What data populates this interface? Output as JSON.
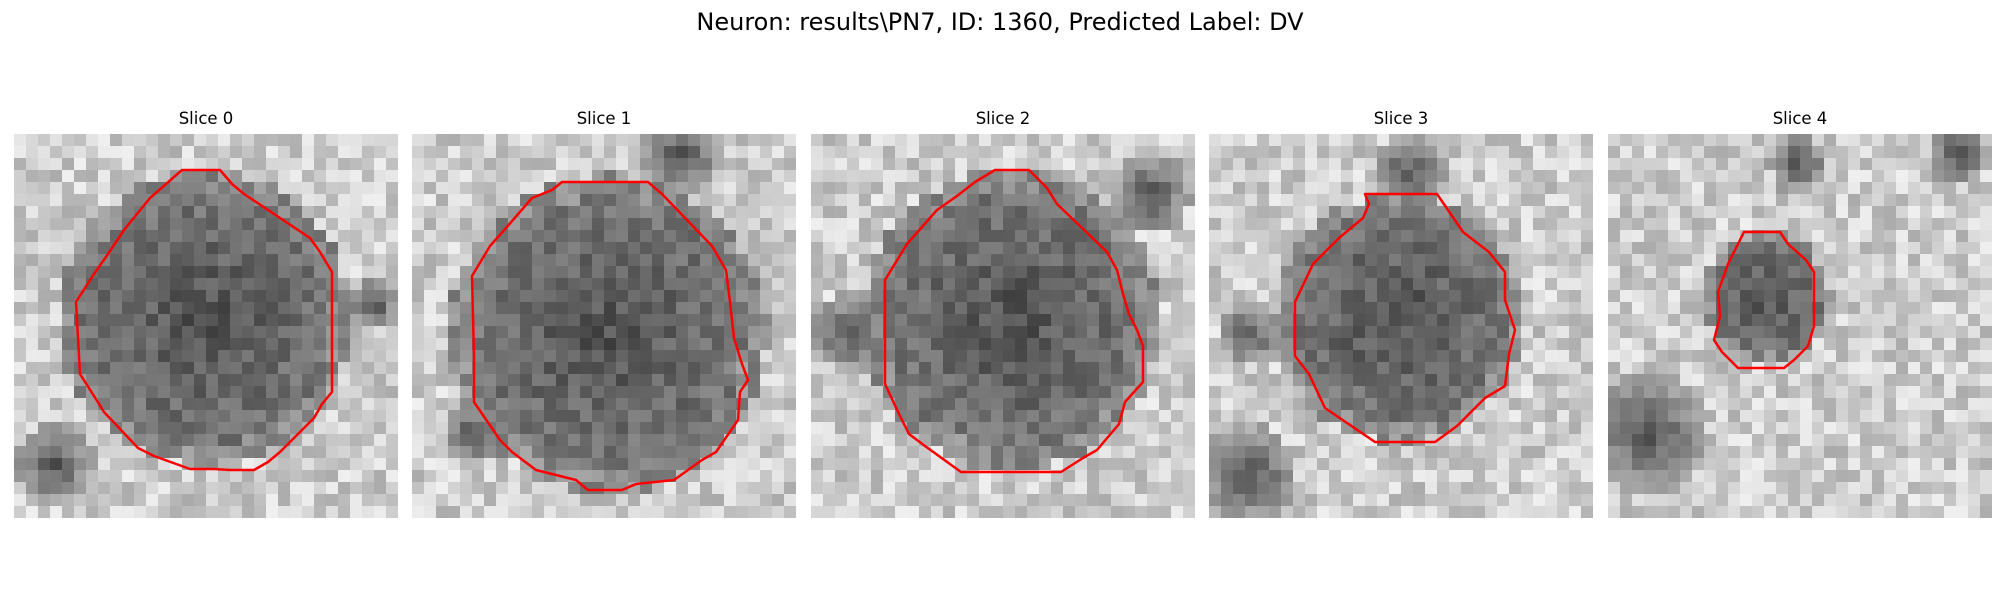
{
  "figure": {
    "title": "Neuron: results\\PN7, ID: 1360, Predicted Label: DV",
    "contour_color": "#ff0000"
  },
  "slices": [
    {
      "label": "Slice 0"
    },
    {
      "label": "Slice 1"
    },
    {
      "label": "Slice 2"
    },
    {
      "label": "Slice 3"
    },
    {
      "label": "Slice 4"
    }
  ]
}
